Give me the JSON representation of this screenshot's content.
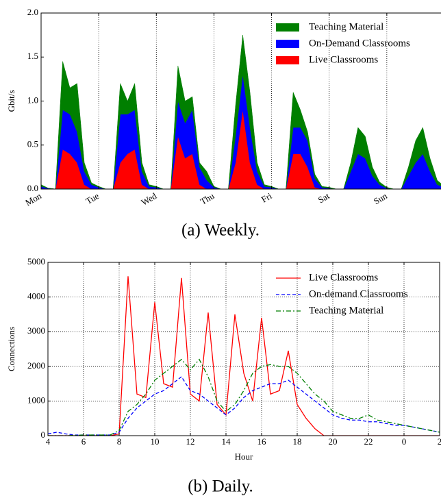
{
  "chart_data": [
    {
      "type": "stacked_area",
      "caption": "(a) Weekly.",
      "ylabel": "Gbit/s",
      "x": [
        0,
        3,
        6,
        9,
        12,
        15,
        18,
        21,
        24,
        27,
        30,
        33,
        36,
        39,
        42,
        45,
        48,
        51,
        54,
        57,
        60,
        63,
        66,
        69,
        72,
        75,
        78,
        81,
        84,
        87,
        90,
        93,
        96,
        99,
        102,
        105,
        108,
        111,
        114,
        117,
        120,
        123,
        126,
        129,
        132,
        135,
        138,
        141,
        144,
        147,
        150,
        153,
        156,
        159,
        162,
        165,
        168
      ],
      "xlim": [
        0,
        168
      ],
      "xticks": [
        {
          "value": 0,
          "label": "Mon"
        },
        {
          "value": 24,
          "label": "Tue"
        },
        {
          "value": 48,
          "label": "Wed"
        },
        {
          "value": 72,
          "label": "Thu"
        },
        {
          "value": 96,
          "label": "Fri"
        },
        {
          "value": 120,
          "label": "Sat"
        },
        {
          "value": 144,
          "label": "Sun"
        }
      ],
      "ylim": [
        0,
        2
      ],
      "yticks": [
        {
          "value": 0,
          "label": "0.0"
        },
        {
          "value": 0.5,
          "label": "0.5"
        },
        {
          "value": 1,
          "label": "1.0"
        },
        {
          "value": 1.5,
          "label": "1.5"
        },
        {
          "value": 2,
          "label": "2.0"
        }
      ],
      "grid": "x",
      "legend": "upper right",
      "series": [
        {
          "name": "Live Classrooms",
          "color": "#ff0000",
          "values": [
            0,
            0,
            0,
            0.45,
            0.4,
            0.3,
            0.05,
            0,
            0,
            0,
            0,
            0.3,
            0.4,
            0.45,
            0.05,
            0,
            0,
            0,
            0,
            0.6,
            0.35,
            0.4,
            0.05,
            0,
            0,
            0,
            0,
            0.3,
            0.9,
            0.3,
            0.05,
            0,
            0,
            0,
            0,
            0.4,
            0.4,
            0.25,
            0.02,
            0,
            0,
            0,
            0,
            0,
            0,
            0,
            0,
            0,
            0,
            0,
            0,
            0,
            0,
            0,
            0,
            0,
            0
          ]
        },
        {
          "name": "On-Demand Classrooms",
          "color": "#0000ff",
          "values": [
            0.03,
            0.01,
            0,
            0.45,
            0.45,
            0.35,
            0.15,
            0.05,
            0.02,
            0,
            0,
            0.55,
            0.45,
            0.45,
            0.15,
            0.03,
            0.02,
            0,
            0,
            0.4,
            0.4,
            0.5,
            0.2,
            0.1,
            0.02,
            0,
            0,
            0.3,
            0.4,
            0.4,
            0.15,
            0.03,
            0.02,
            0,
            0,
            0.3,
            0.3,
            0.3,
            0.1,
            0.02,
            0.01,
            0,
            0,
            0.2,
            0.4,
            0.35,
            0.15,
            0.05,
            0.01,
            0,
            0,
            0.15,
            0.3,
            0.4,
            0.2,
            0.05,
            0.02
          ]
        },
        {
          "name": "Teaching Material",
          "color": "#007f00",
          "values": [
            0.02,
            0,
            0,
            0.55,
            0.3,
            0.55,
            0.1,
            0.02,
            0.01,
            0,
            0,
            0.35,
            0.15,
            0.3,
            0.1,
            0.02,
            0.01,
            0,
            0,
            0.4,
            0.25,
            0.15,
            0.05,
            0.1,
            0.01,
            0,
            0,
            0.35,
            0.45,
            0.4,
            0.1,
            0.02,
            0.01,
            0,
            0,
            0.4,
            0.2,
            0.1,
            0.05,
            0.01,
            0.01,
            0,
            0,
            0.1,
            0.3,
            0.25,
            0.1,
            0.03,
            0.01,
            0,
            0,
            0.1,
            0.25,
            0.3,
            0.15,
            0.05,
            0.01
          ]
        }
      ]
    },
    {
      "type": "line",
      "caption": "(b) Daily.",
      "xlabel": "Hour",
      "ylabel": "Connections",
      "x": [
        4,
        4.5,
        5,
        5.5,
        6,
        6.5,
        7,
        7.5,
        8,
        8.5,
        9,
        9.5,
        10,
        10.5,
        11,
        11.5,
        12,
        12.5,
        13,
        13.5,
        14,
        14.5,
        15,
        15.5,
        16,
        16.5,
        17,
        17.5,
        18,
        18.5,
        19,
        19.5,
        20,
        20.5,
        21,
        21.5,
        22,
        22.5,
        23,
        23.5,
        24,
        24.5,
        25,
        25.5,
        26
      ],
      "xlim": [
        4,
        26
      ],
      "xticks": [
        4,
        6,
        8,
        10,
        12,
        14,
        16,
        18,
        20,
        22,
        {
          "value": 24,
          "label": "0"
        },
        {
          "value": 26,
          "label": "2"
        }
      ],
      "ylim": [
        0,
        5000
      ],
      "yticks": [
        0,
        1000,
        2000,
        3000,
        4000,
        5000
      ],
      "grid": "both",
      "legend": "upper right",
      "series": [
        {
          "name": "Live Classrooms",
          "color": "#ff0000",
          "linestyle": "solid",
          "values": [
            0,
            0,
            0,
            0,
            0,
            0,
            0,
            0,
            50,
            4600,
            1200,
            1100,
            3850,
            1500,
            1400,
            4550,
            1200,
            1000,
            3550,
            900,
            600,
            3500,
            1800,
            1000,
            3400,
            1200,
            1300,
            2450,
            900,
            500,
            200,
            0,
            0,
            0,
            0,
            0,
            0,
            0,
            0,
            0,
            0,
            0,
            0,
            0,
            0
          ]
        },
        {
          "name": "On-demand Classrooms",
          "color": "#0000ff",
          "linestyle": "dashed",
          "values": [
            50,
            100,
            50,
            20,
            20,
            20,
            20,
            20,
            100,
            500,
            800,
            1000,
            1200,
            1300,
            1500,
            1700,
            1300,
            1200,
            1000,
            800,
            600,
            800,
            1100,
            1300,
            1400,
            1500,
            1500,
            1600,
            1400,
            1200,
            1000,
            800,
            600,
            500,
            450,
            450,
            400,
            400,
            350,
            300,
            300,
            250,
            200,
            150,
            100
          ]
        },
        {
          "name": "Teaching Material",
          "color": "#007f00",
          "linestyle": "dashdot",
          "values": [
            0,
            0,
            0,
            10,
            20,
            20,
            20,
            20,
            150,
            700,
            900,
            1200,
            1600,
            1800,
            2000,
            2200,
            1900,
            2200,
            1700,
            1000,
            700,
            900,
            1300,
            1800,
            2000,
            2050,
            2000,
            2000,
            1800,
            1500,
            1200,
            1000,
            700,
            600,
            500,
            500,
            600,
            450,
            400,
            350,
            300,
            250,
            200,
            150,
            100
          ]
        }
      ]
    }
  ]
}
